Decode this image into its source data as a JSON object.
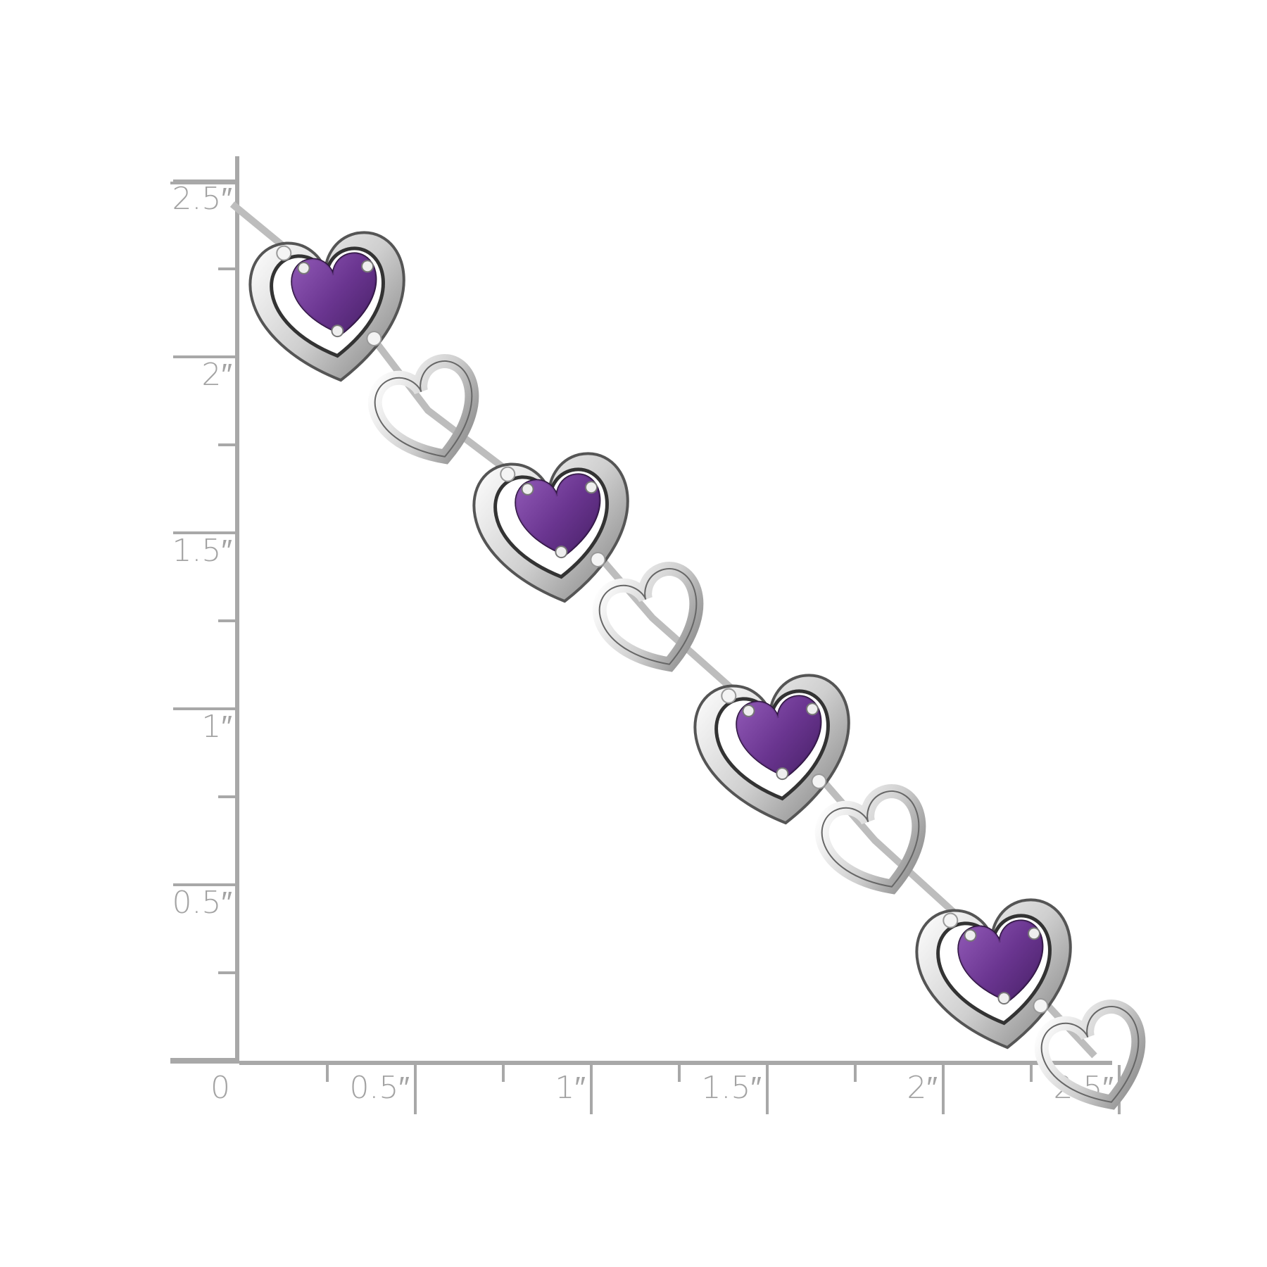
{
  "ruler": {
    "color": "#a8a8a8",
    "x_labels": [
      "0",
      "0.5″",
      "1″",
      "1.5″",
      "2″",
      "2.5″"
    ],
    "y_labels": [
      "0.5″",
      "1″",
      "1.5″",
      "2″",
      "2.5″"
    ]
  },
  "product": {
    "gem_color": "#6a3590",
    "metal_color": "#d9d9d9",
    "gem_count_visible": 4
  }
}
